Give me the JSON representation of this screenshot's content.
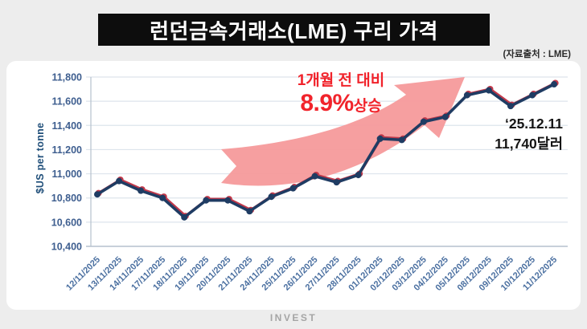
{
  "header": {
    "title": "런던금속거래소(LME) 구리 가격",
    "source": "(자료출처 : LME)"
  },
  "chart_data": {
    "type": "line",
    "title": "런던금속거래소(LME) 구리 가격",
    "xlabel": "",
    "ylabel": "$US per tonne",
    "ylim": [
      10400,
      11800
    ],
    "ytick_step": 200,
    "grid": true,
    "legend": "none",
    "categories": [
      "12/11/2025",
      "13/11/2025",
      "14/11/2025",
      "17/11/2025",
      "18/11/2025",
      "19/11/2025",
      "20/11/2025",
      "21/11/2025",
      "24/11/2025",
      "25/11/2025",
      "26/11/2025",
      "27/11/2025",
      "28/11/2025",
      "01/12/2025",
      "02/12/2025",
      "03/12/2025",
      "04/12/2025",
      "05/12/2025",
      "08/12/2025",
      "09/12/2025",
      "10/12/2025",
      "11/12/2025"
    ],
    "values": [
      10830,
      10940,
      10860,
      10800,
      10640,
      10780,
      10780,
      10690,
      10810,
      10880,
      10980,
      10930,
      10990,
      11290,
      11280,
      11430,
      11470,
      11650,
      11690,
      11560,
      11650,
      11740
    ],
    "colors": {
      "line": "#1f3c63",
      "line_shadow": "#c2394a",
      "gridline": "#dde4ec",
      "axis": "#b6c1cd",
      "tick_label": "#3e5e8f",
      "x_label": "#4a6fa0"
    }
  },
  "annotations": {
    "change_label": "1개월 전 대비",
    "change_value": "8.9%",
    "change_suffix": "상승",
    "latest_date": "‘25.12.11",
    "latest_price": "11,740달러",
    "arrow_color": "#f59a9b"
  },
  "footer": {
    "brand": "INVEST"
  }
}
